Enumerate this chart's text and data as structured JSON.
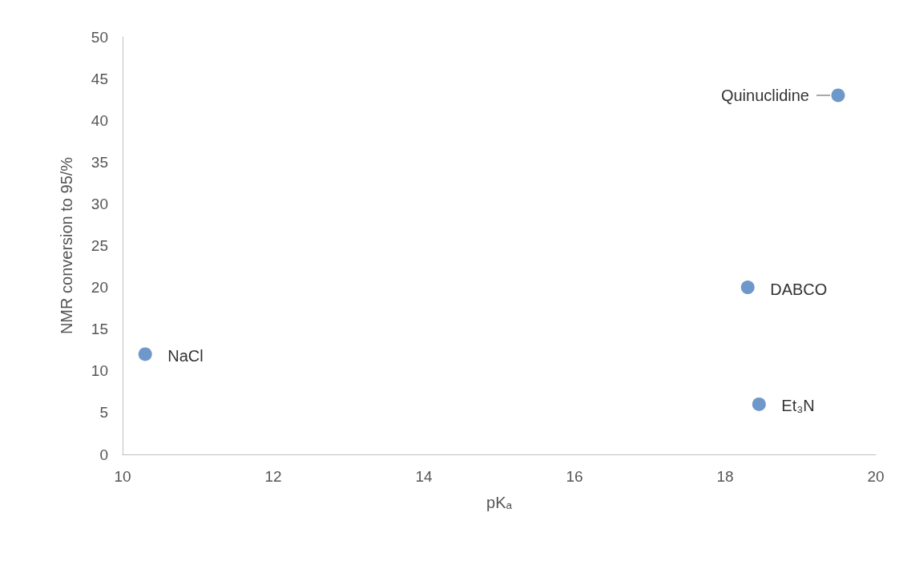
{
  "chart_data": {
    "type": "scatter",
    "xlabel": "pKₐ",
    "ylabel": "NMR conversion to 95/%",
    "x": [
      10.3,
      18.3,
      18.45,
      19.5
    ],
    "values": [
      12,
      20,
      6,
      43
    ],
    "color": "#4a7ebb",
    "marker": "circle",
    "grid": false,
    "xlim": [
      10,
      20
    ],
    "xticks": [
      10,
      12,
      14,
      16,
      18,
      20
    ],
    "ylim": [
      0,
      50
    ],
    "yticks": [
      0,
      5,
      10,
      15,
      20,
      25,
      30,
      35,
      40,
      45,
      50
    ],
    "annotations": [
      {
        "text": "NaCl",
        "x": 10.3,
        "y": 12
      },
      {
        "text": "DABCO",
        "x": 18.3,
        "y": 20
      },
      {
        "text": "Et₃N",
        "x": 18.45,
        "y": 6
      },
      {
        "text": "Quinuclidine",
        "x": 19.5,
        "y": 43
      }
    ]
  }
}
